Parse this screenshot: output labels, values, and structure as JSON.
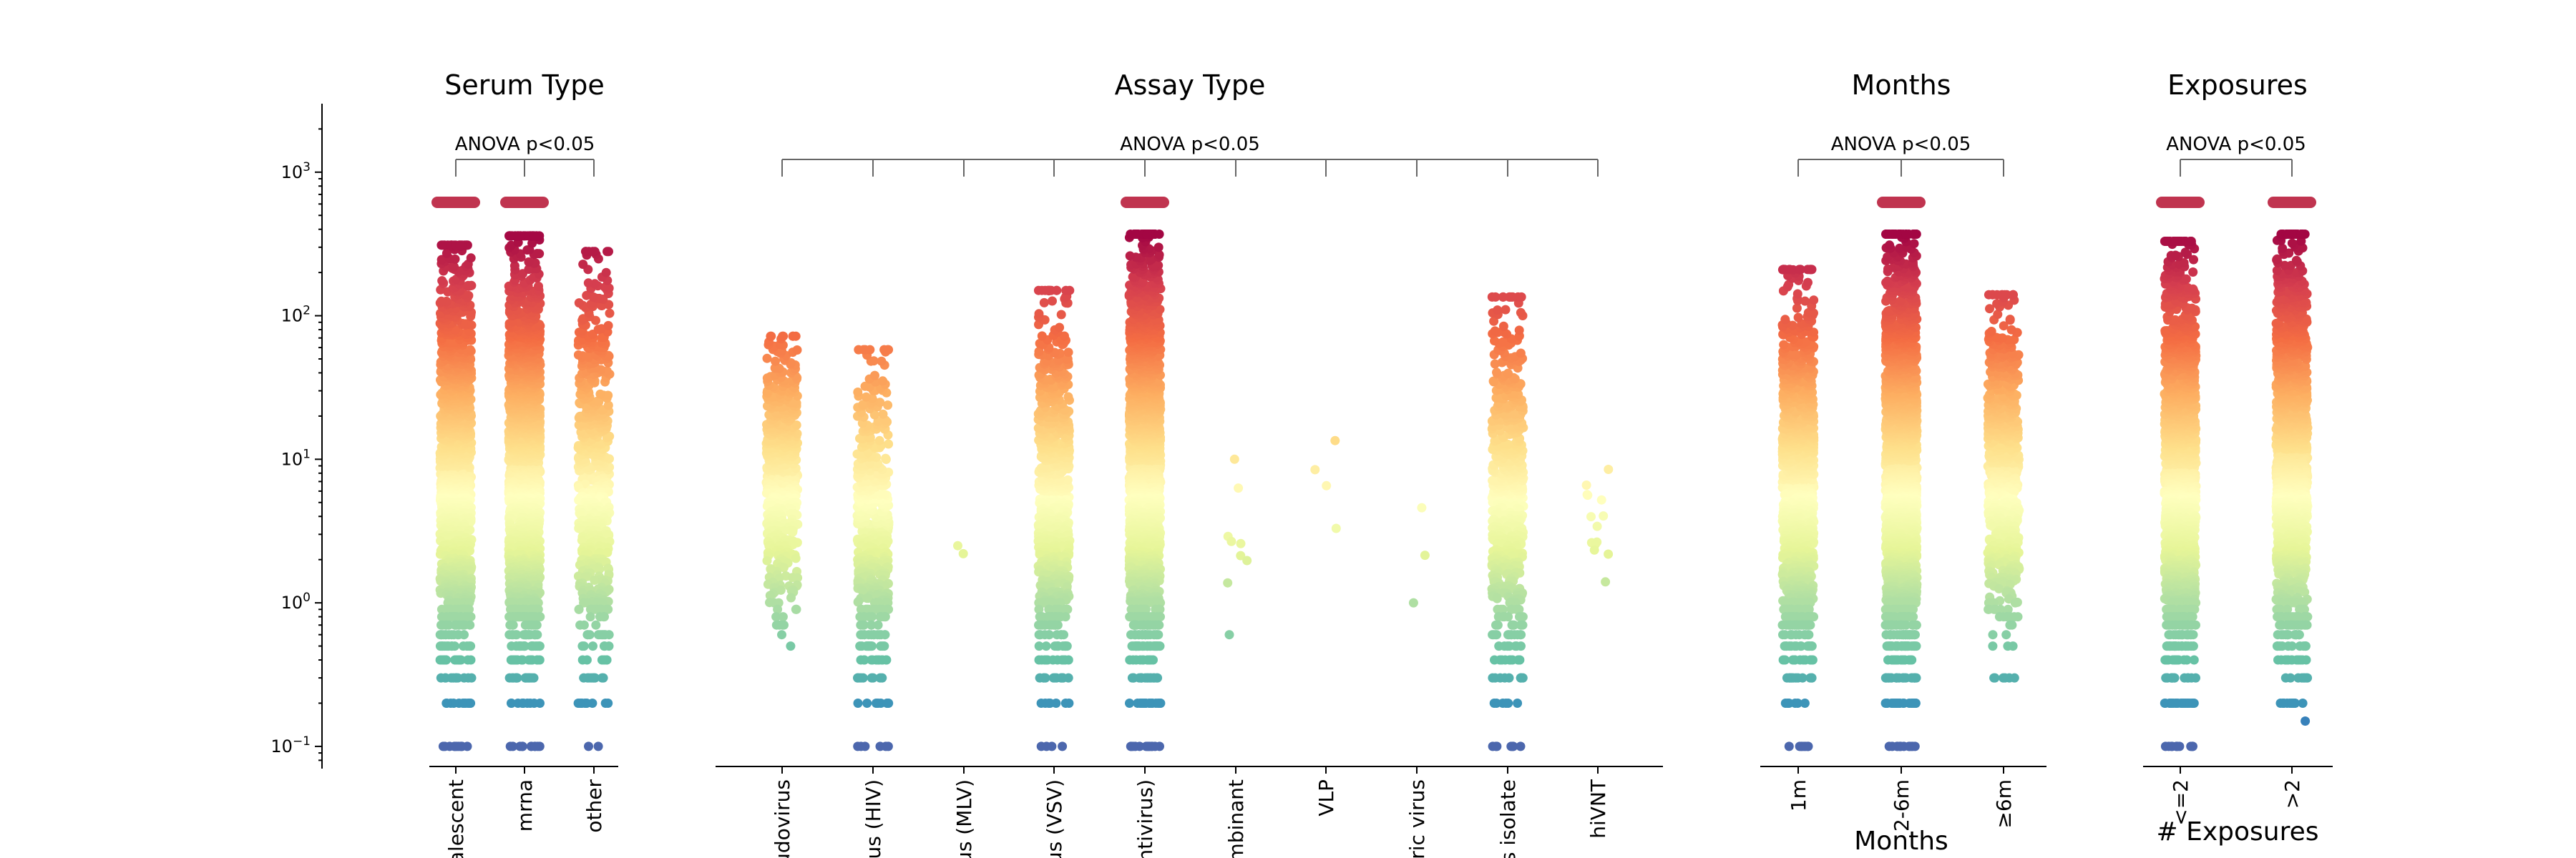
{
  "chart_data": {
    "type": "scatter",
    "subtype": "strip",
    "y_scale": "log",
    "ylim": [
      0.07,
      3000
    ],
    "y_ticks": [
      {
        "value": 1000,
        "base": "10",
        "exp": "3"
      },
      {
        "value": 100,
        "base": "10",
        "exp": "2"
      },
      {
        "value": 10,
        "base": "10",
        "exp": "1"
      },
      {
        "value": 1,
        "base": "10",
        "exp": "0"
      },
      {
        "value": 0.1,
        "base": "10",
        "exp": "−1"
      }
    ],
    "colormap": "Spectral_r",
    "colormap_stops": [
      "#5e4fa2",
      "#3288bd",
      "#66c2a5",
      "#abdda4",
      "#e6f598",
      "#ffffbf",
      "#fee08b",
      "#fdae61",
      "#f46d43",
      "#d53e4f",
      "#9e0142"
    ],
    "cap_marker_color": "#c0344f",
    "grid": false,
    "legend": "none",
    "panels": [
      {
        "title": "Serum Type",
        "annotation": "ANOVA p<0.05",
        "xlabel": "",
        "categories": [
          {
            "label": "convalescent",
            "visible_label": "valescent",
            "n": 1500,
            "y_min": 0.1,
            "y_max": 310,
            "capped": true
          },
          {
            "label": "mrna",
            "visible_label": "mrna",
            "n": 1900,
            "y_min": 0.1,
            "y_max": 360,
            "capped": true
          },
          {
            "label": "other",
            "visible_label": "other",
            "n": 650,
            "y_min": 0.1,
            "y_max": 280,
            "capped": false
          }
        ]
      },
      {
        "title": "Assay Type",
        "annotation": "ANOVA p<0.05",
        "xlabel": "",
        "categories": [
          {
            "label": "pseudovirus",
            "visible_label": "eudovirus",
            "n": 650,
            "y_min": 0.5,
            "y_max": 72,
            "capped": false
          },
          {
            "label": "pseudovirus (HIV)",
            "visible_label": "irus (HIV)",
            "n": 550,
            "y_min": 0.1,
            "y_max": 58,
            "capped": false
          },
          {
            "label": "pseudovirus (MLV)",
            "visible_label": "rus (MLV)",
            "n": 2,
            "y_min": 2.2,
            "y_max": 2.5,
            "capped": false
          },
          {
            "label": "pseudovirus (VSV)",
            "visible_label": "rus (VSV)",
            "n": 850,
            "y_min": 0.1,
            "y_max": 150,
            "capped": false
          },
          {
            "label": "pseudovirus (lentivirus)",
            "visible_label": "entivirus)",
            "n": 2200,
            "y_min": 0.1,
            "y_max": 370,
            "capped": true
          },
          {
            "label": "recombinant",
            "visible_label": "ombinant",
            "n": 9,
            "y_min": 0.6,
            "y_max": 10,
            "capped": false
          },
          {
            "label": "VLP",
            "visible_label": "VLP",
            "n": 4,
            "y_min": 3.3,
            "y_max": 13.5,
            "capped": false
          },
          {
            "label": "chimeric virus",
            "visible_label": "eric virus",
            "n": 3,
            "y_min": 1.0,
            "y_max": 4.6,
            "capped": false
          },
          {
            "label": "virus isolate",
            "visible_label": "us isolate",
            "n": 650,
            "y_min": 0.1,
            "y_max": 135,
            "capped": false
          },
          {
            "label": "hiVNT",
            "visible_label": "hiVNT",
            "n": 14,
            "y_min": 1.4,
            "y_max": 8.5,
            "capped": false
          }
        ]
      },
      {
        "title": "Months",
        "annotation": "ANOVA p<0.05",
        "xlabel": "Months",
        "categories": [
          {
            "label": "1m",
            "visible_label": "1m",
            "n": 1200,
            "y_min": 0.1,
            "y_max": 210,
            "capped": false
          },
          {
            "label": "2-6m",
            "visible_label": "2-6m",
            "n": 2300,
            "y_min": 0.1,
            "y_max": 370,
            "capped": true
          },
          {
            "label": "≥6m",
            "visible_label": "≥6m",
            "n": 750,
            "y_min": 0.3,
            "y_max": 140,
            "capped": false
          }
        ]
      },
      {
        "title": "Exposures",
        "annotation": "ANOVA p<0.05",
        "xlabel": "# Exposures",
        "categories": [
          {
            "label": "<=2",
            "visible_label": "<=2",
            "n": 1800,
            "y_min": 0.1,
            "y_max": 330,
            "capped": true
          },
          {
            "label": ">2",
            "visible_label": ">2",
            "n": 1700,
            "y_min": 0.15,
            "y_max": 370,
            "capped": true
          }
        ]
      }
    ]
  }
}
